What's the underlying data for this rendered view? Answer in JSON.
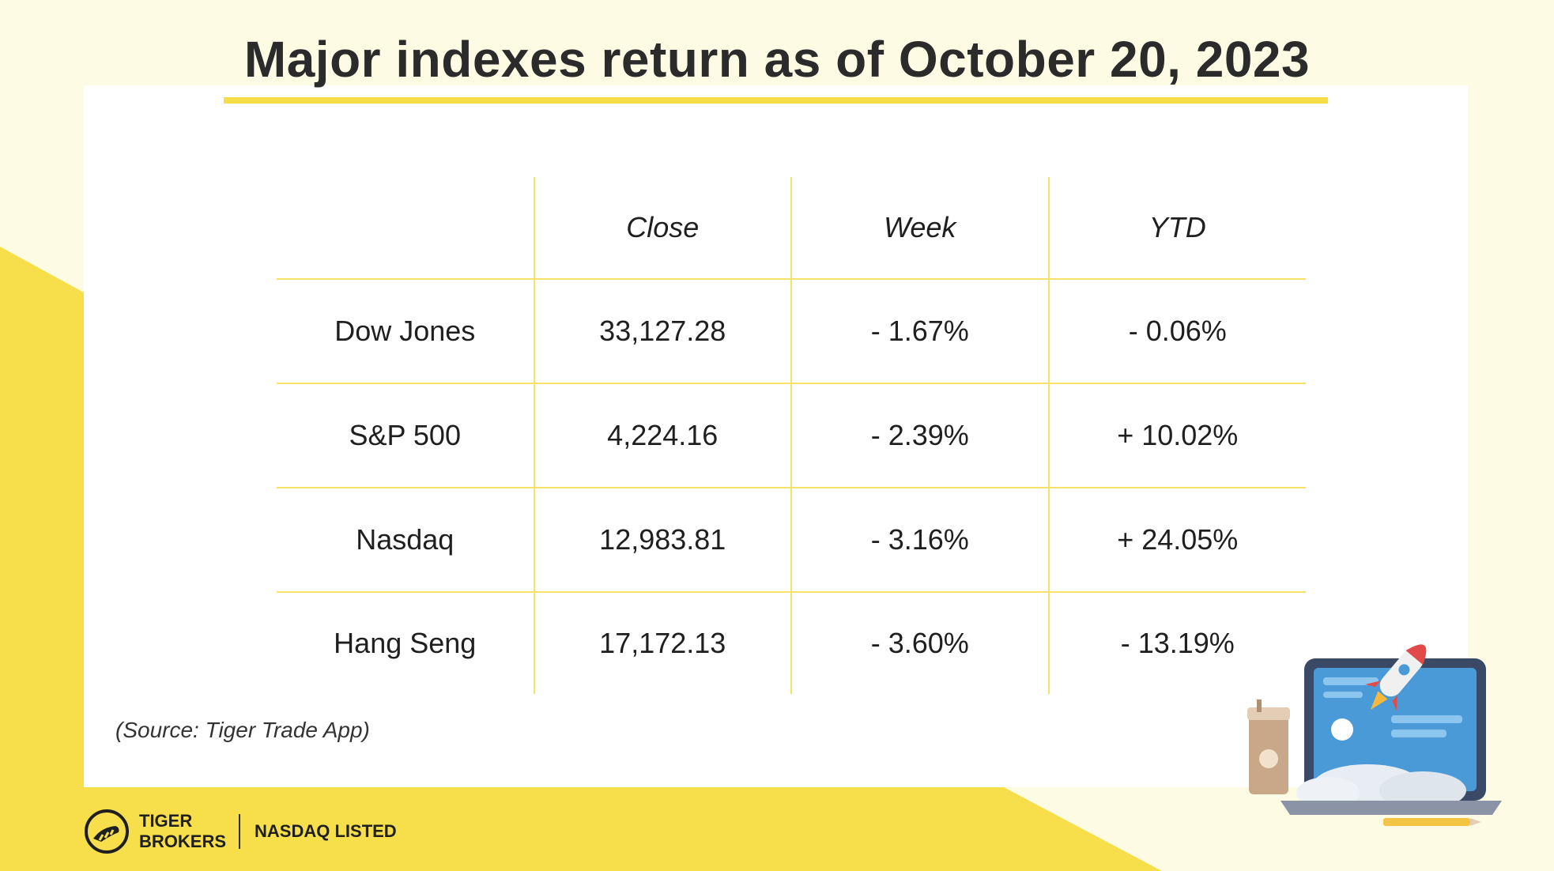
{
  "title": "Major indexes return as of October 20, 2023",
  "colors": {
    "accent": "#f6dd47",
    "negative": "#e0455f",
    "positive": "#3aa89a"
  },
  "table": {
    "headers": [
      "",
      "Close",
      "Week",
      "YTD"
    ],
    "rows": [
      {
        "name": "Dow Jones",
        "close": "33,127.28",
        "week": "- 1.67%",
        "ytd": "- 0.06%"
      },
      {
        "name": "S&P 500",
        "close": "4,224.16",
        "week": "- 2.39%",
        "ytd": "+ 10.02%"
      },
      {
        "name": "Nasdaq",
        "close": "12,983.81",
        "week": "- 3.16%",
        "ytd": "+ 24.05%"
      },
      {
        "name": "Hang Seng",
        "close": "17,172.13",
        "week": "- 3.60%",
        "ytd": "- 13.19%"
      }
    ]
  },
  "source": "(Source: Tiger Trade App)",
  "brand": {
    "name_line1": "TIGER",
    "name_line2": "BROKERS",
    "listed": "NASDAQ LISTED"
  },
  "icons": {
    "logo": "tiger-logo-icon",
    "illustration": "laptop-rocket-illustration"
  }
}
